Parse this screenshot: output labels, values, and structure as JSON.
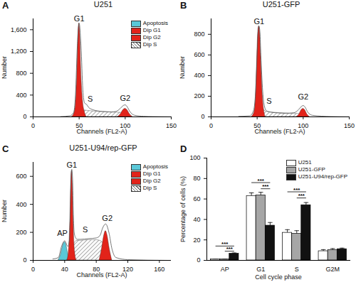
{
  "chart_data": [
    {
      "panel_label": "A",
      "type": "area",
      "title": "U251",
      "x_label": "Channels (FL2-A)",
      "y_label": "Number",
      "xlim": [
        0,
        150
      ],
      "xticks": [
        0,
        50,
        100,
        150
      ],
      "ylim": [
        0,
        1800
      ],
      "yticks": [
        0,
        400,
        800,
        {
          "value": 1200,
          "label": "1,200"
        },
        {
          "value": 1600,
          "label": "1,600"
        }
      ],
      "legend": "top-right",
      "series": [
        {
          "name": "Apoptosis",
          "color": "#5ac8d8",
          "x": [],
          "values": []
        },
        {
          "name": "Dip G1",
          "color": "#e2231a",
          "x": [
            42,
            44,
            46,
            48,
            49,
            50,
            51,
            52,
            54,
            56,
            58
          ],
          "values": [
            0,
            40,
            200,
            900,
            1500,
            1720,
            1500,
            900,
            300,
            90,
            0
          ]
        },
        {
          "name": "Dip G2",
          "color": "#e2231a",
          "x": [
            92,
            95,
            98,
            100,
            102,
            105,
            108
          ],
          "values": [
            0,
            50,
            130,
            150,
            130,
            50,
            0
          ]
        },
        {
          "name": "Dip S",
          "color": "#707070",
          "line_style": "hatched",
          "x": [
            48,
            55,
            60,
            70,
            80,
            90,
            100,
            105
          ],
          "values": [
            0,
            120,
            110,
            95,
            85,
            80,
            70,
            0
          ]
        }
      ],
      "histogram": {
        "x": [
          30,
          40,
          44,
          46,
          48,
          50,
          52,
          54,
          56,
          58,
          60,
          65,
          70,
          75,
          80,
          85,
          90,
          95,
          98,
          100,
          102,
          105,
          110,
          120,
          130,
          150
        ],
        "values": [
          5,
          20,
          80,
          400,
          1300,
          1720,
          1300,
          500,
          250,
          230,
          180,
          130,
          110,
          100,
          95,
          90,
          100,
          160,
          210,
          220,
          190,
          100,
          30,
          10,
          5,
          0
        ]
      },
      "annotations": [
        {
          "text": "G1",
          "x": 50,
          "y": 1720
        },
        {
          "text": "S",
          "x": 62,
          "y": 250
        },
        {
          "text": "G2",
          "x": 100,
          "y": 260
        }
      ]
    },
    {
      "panel_label": "B",
      "type": "area",
      "title": "U251-GFP",
      "x_label": "Channels (FL2-A)",
      "y_label": "Number",
      "xlim": [
        0,
        150
      ],
      "xticks": [
        0,
        50,
        100,
        150
      ],
      "ylim": [
        0,
        950
      ],
      "yticks": [
        0,
        200,
        400,
        600,
        800
      ],
      "series": [
        {
          "name": "Dip G1",
          "color": "#e2231a",
          "x": [
            44,
            47,
            49,
            50,
            51,
            52,
            53,
            54,
            56,
            59
          ],
          "values": [
            0,
            50,
            300,
            600,
            820,
            880,
            820,
            600,
            200,
            0
          ]
        },
        {
          "name": "Dip G2",
          "color": "#e2231a",
          "x": [
            93,
            96,
            98,
            100,
            102,
            104,
            107
          ],
          "values": [
            0,
            30,
            65,
            80,
            65,
            30,
            0
          ]
        },
        {
          "name": "Dip S",
          "color": "#707070",
          "line_style": "hatched",
          "x": [
            50,
            56,
            60,
            70,
            80,
            90,
            95,
            100
          ],
          "values": [
            0,
            70,
            50,
            40,
            35,
            30,
            30,
            0
          ]
        }
      ],
      "histogram": {
        "x": [
          30,
          42,
          46,
          48,
          50,
          51,
          52,
          53,
          54,
          56,
          58,
          60,
          65,
          70,
          80,
          90,
          95,
          98,
          100,
          102,
          105,
          110,
          130,
          150
        ],
        "values": [
          5,
          10,
          60,
          200,
          600,
          820,
          880,
          820,
          600,
          250,
          100,
          60,
          45,
          40,
          35,
          40,
          70,
          100,
          110,
          95,
          45,
          15,
          3,
          0
        ]
      },
      "annotations": [
        {
          "text": "G1",
          "x": 52,
          "y": 880
        },
        {
          "text": "S",
          "x": 63,
          "y": 110
        },
        {
          "text": "G2",
          "x": 100,
          "y": 150
        }
      ]
    },
    {
      "panel_label": "C",
      "type": "area",
      "title": "U251-U94/rep-GFP",
      "x_label": "Channels (FL2-A)",
      "y_label": "Number",
      "xlim": [
        0,
        175
      ],
      "xticks": [
        0,
        40,
        80,
        120,
        160
      ],
      "ylim": [
        0,
        700
      ],
      "yticks": [
        0,
        200,
        400,
        600
      ],
      "legend": "top-right",
      "series": [
        {
          "name": "Apoptosis",
          "color": "#5ac8d8",
          "x": [
            32,
            35,
            38,
            40,
            42,
            44,
            46
          ],
          "values": [
            0,
            40,
            110,
            130,
            110,
            50,
            0
          ]
        },
        {
          "name": "Dip G1",
          "color": "#e2231a",
          "x": [
            43,
            45,
            47,
            48,
            49,
            50,
            51,
            53,
            55
          ],
          "values": [
            0,
            60,
            300,
            550,
            640,
            550,
            300,
            60,
            0
          ]
        },
        {
          "name": "Dip G2",
          "color": "#e2231a",
          "x": [
            84,
            87,
            90,
            92,
            94,
            97,
            100
          ],
          "values": [
            0,
            80,
            180,
            210,
            180,
            80,
            0
          ]
        },
        {
          "name": "Dip S",
          "color": "#707070",
          "line_style": "hatched",
          "x": [
            47,
            52,
            56,
            60,
            70,
            80,
            85,
            90,
            95
          ],
          "values": [
            0,
            120,
            140,
            140,
            145,
            145,
            140,
            110,
            0
          ]
        }
      ],
      "histogram": {
        "x": [
          25,
          32,
          36,
          40,
          44,
          46,
          47,
          48,
          49,
          50,
          51,
          52,
          54,
          56,
          60,
          70,
          80,
          85,
          88,
          92,
          96,
          100,
          105,
          120,
          170
        ],
        "values": [
          10,
          20,
          100,
          140,
          100,
          140,
          320,
          580,
          650,
          580,
          330,
          200,
          160,
          150,
          150,
          155,
          160,
          180,
          230,
          260,
          200,
          80,
          20,
          5,
          0
        ]
      },
      "annotations": [
        {
          "text": "AP",
          "x": 37,
          "y": 160
        },
        {
          "text": "G1",
          "x": 49,
          "y": 650
        },
        {
          "text": "S",
          "x": 66,
          "y": 190
        },
        {
          "text": "G2",
          "x": 94,
          "y": 270
        }
      ]
    },
    {
      "panel_label": "D",
      "type": "bar",
      "x_label": "Cell cycle phase",
      "y_label": "Percentage of cells (%)",
      "categories": [
        "AP",
        "G1",
        "S",
        "G2M"
      ],
      "ylim": [
        0,
        100
      ],
      "yticks": [
        0,
        20,
        40,
        60,
        80,
        100
      ],
      "legend": "top-right",
      "series": [
        {
          "name": "U251",
          "color": "#ffffff",
          "values": [
            1,
            63,
            27,
            9
          ],
          "errors": [
            0.3,
            3,
            3,
            1.5
          ]
        },
        {
          "name": "U251-GFP",
          "color": "#a6a6a6",
          "values": [
            1,
            63.5,
            26,
            10
          ],
          "errors": [
            0.3,
            3,
            3,
            1.5
          ]
        },
        {
          "name": "U251-U94/rep-GFP",
          "color": "#111111",
          "values": [
            6.5,
            34,
            54,
            11
          ],
          "errors": [
            0.8,
            3,
            2.5,
            1
          ]
        }
      ],
      "significance": [
        {
          "text": "***",
          "category": "AP",
          "from": "U251",
          "to": "U251-U94/rep-GFP",
          "y": 14
        },
        {
          "text": "***",
          "category": "AP",
          "from": "U251-GFP",
          "to": "U251-U94/rep-GFP",
          "y": 9
        },
        {
          "text": "***",
          "category": "G1",
          "from": "U251",
          "to": "U251-U94/rep-GFP",
          "y": 76
        },
        {
          "text": "***",
          "category": "G1",
          "from": "U251-GFP",
          "to": "U251-U94/rep-GFP",
          "y": 70
        },
        {
          "text": "***",
          "category": "S",
          "from": "U251",
          "to": "U251-U94/rep-GFP",
          "y": 67
        },
        {
          "text": "***",
          "category": "S",
          "from": "U251-GFP",
          "to": "U251-U94/rep-GFP",
          "y": 61
        }
      ]
    }
  ]
}
